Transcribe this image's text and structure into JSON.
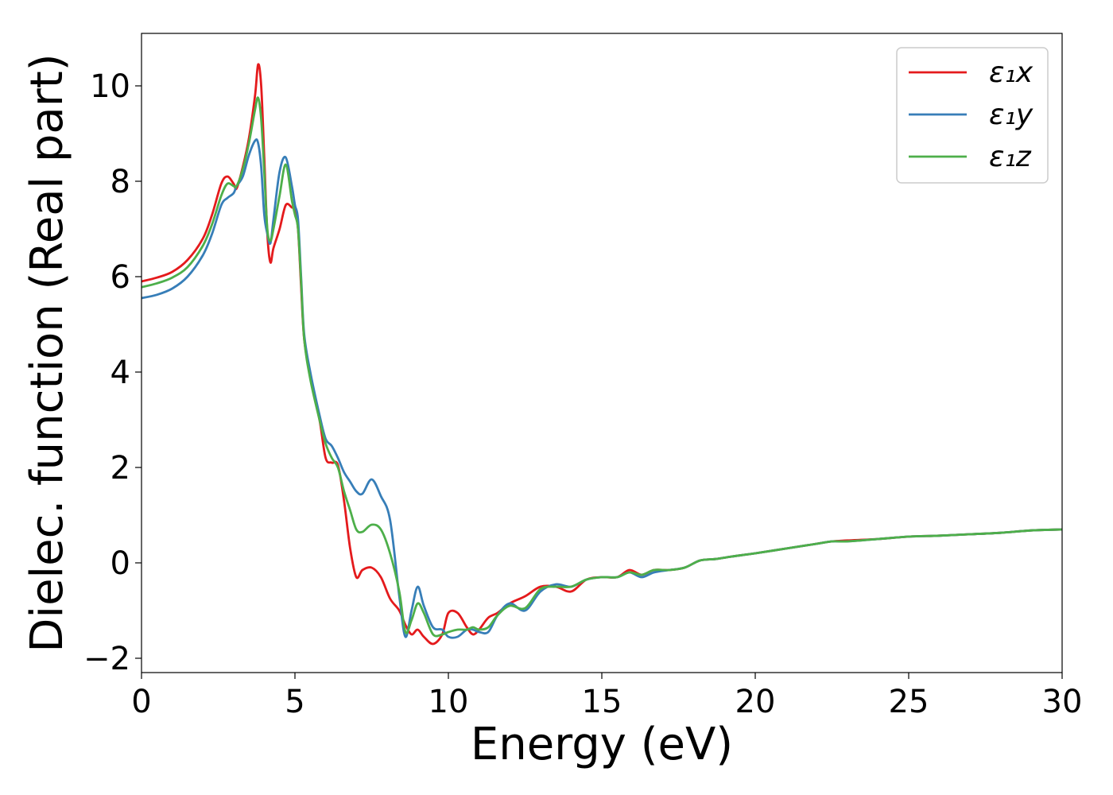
{
  "chart_data": {
    "type": "line",
    "title": "",
    "xlabel": "Energy (eV)",
    "ylabel": "Dielec. function (Real part)",
    "xlim": [
      0,
      30
    ],
    "ylim": [
      -2.3,
      11.1
    ],
    "xticks": [
      0,
      5,
      10,
      15,
      20,
      25,
      30
    ],
    "yticks": [
      -2,
      0,
      2,
      4,
      6,
      8,
      10
    ],
    "ytick_labels": [
      "−2",
      "0",
      "2",
      "4",
      "6",
      "8",
      "10"
    ],
    "grid": false,
    "legend_position": "top-right",
    "series": [
      {
        "name": "ε₁x",
        "color": "#e41a1c",
        "x": [
          0,
          0.5,
          1.0,
          1.5,
          2.0,
          2.3,
          2.6,
          2.8,
          3.0,
          3.1,
          3.3,
          3.5,
          3.7,
          3.8,
          3.9,
          4.0,
          4.1,
          4.2,
          4.3,
          4.5,
          4.7,
          4.9,
          5.0,
          5.1,
          5.2,
          5.3,
          5.5,
          5.8,
          6.0,
          6.2,
          6.4,
          6.6,
          6.8,
          7.0,
          7.2,
          7.5,
          7.8,
          8.1,
          8.4,
          8.6,
          8.8,
          9.0,
          9.2,
          9.5,
          9.8,
          10.0,
          10.3,
          10.6,
          10.8,
          11.0,
          11.3,
          11.6,
          12.0,
          12.5,
          13.0,
          13.5,
          14.0,
          14.5,
          15.0,
          15.5,
          15.9,
          16.3,
          16.7,
          17.2,
          17.7,
          18.2,
          18.7,
          19.2,
          20.0,
          21.0,
          22.0,
          22.5,
          23.0,
          24.0,
          25.0,
          26.0,
          27.0,
          28.0,
          29.0,
          30.0
        ],
        "y": [
          5.9,
          5.98,
          6.1,
          6.35,
          6.8,
          7.3,
          7.95,
          8.1,
          7.95,
          7.85,
          8.3,
          8.9,
          9.8,
          10.45,
          10.0,
          8.5,
          6.9,
          6.3,
          6.6,
          7.0,
          7.5,
          7.45,
          7.4,
          7.0,
          5.8,
          4.7,
          3.9,
          3.0,
          2.2,
          2.1,
          2.05,
          1.3,
          0.3,
          -0.3,
          -0.15,
          -0.1,
          -0.3,
          -0.75,
          -1.0,
          -1.3,
          -1.5,
          -1.4,
          -1.55,
          -1.7,
          -1.5,
          -1.05,
          -1.05,
          -1.35,
          -1.5,
          -1.4,
          -1.15,
          -1.05,
          -0.85,
          -0.7,
          -0.5,
          -0.5,
          -0.6,
          -0.35,
          -0.3,
          -0.3,
          -0.15,
          -0.25,
          -0.15,
          -0.15,
          -0.1,
          0.05,
          0.08,
          0.13,
          0.2,
          0.3,
          0.4,
          0.45,
          0.47,
          0.5,
          0.55,
          0.57,
          0.6,
          0.63,
          0.68,
          0.7
        ]
      },
      {
        "name": "ε₁y",
        "color": "#377eb8",
        "x": [
          0,
          0.5,
          1.0,
          1.5,
          2.0,
          2.3,
          2.6,
          2.8,
          3.0,
          3.1,
          3.3,
          3.5,
          3.7,
          3.8,
          3.9,
          4.0,
          4.1,
          4.2,
          4.3,
          4.5,
          4.7,
          4.9,
          5.0,
          5.1,
          5.2,
          5.3,
          5.5,
          5.8,
          6.0,
          6.2,
          6.4,
          6.6,
          6.8,
          7.0,
          7.2,
          7.5,
          7.8,
          8.1,
          8.4,
          8.6,
          8.8,
          9.0,
          9.2,
          9.5,
          9.8,
          10.0,
          10.3,
          10.6,
          10.8,
          11.0,
          11.3,
          11.6,
          12.0,
          12.5,
          13.0,
          13.5,
          14.0,
          14.5,
          15.0,
          15.5,
          15.9,
          16.3,
          16.7,
          17.2,
          17.7,
          18.2,
          18.7,
          19.2,
          20.0,
          21.0,
          22.0,
          22.5,
          23.0,
          24.0,
          25.0,
          26.0,
          27.0,
          28.0,
          29.0,
          30.0
        ],
        "y": [
          5.55,
          5.62,
          5.75,
          6.0,
          6.45,
          6.9,
          7.5,
          7.65,
          7.75,
          7.9,
          8.1,
          8.55,
          8.85,
          8.8,
          8.3,
          7.3,
          6.9,
          6.7,
          7.2,
          8.2,
          8.5,
          7.9,
          7.5,
          7.2,
          6.0,
          4.8,
          4.0,
          3.1,
          2.6,
          2.45,
          2.2,
          1.9,
          1.7,
          1.5,
          1.45,
          1.75,
          1.4,
          0.9,
          -0.7,
          -1.55,
          -1.0,
          -0.5,
          -0.9,
          -1.35,
          -1.4,
          -1.55,
          -1.55,
          -1.4,
          -1.4,
          -1.45,
          -1.45,
          -1.1,
          -0.85,
          -1.0,
          -0.6,
          -0.45,
          -0.5,
          -0.35,
          -0.3,
          -0.3,
          -0.2,
          -0.3,
          -0.2,
          -0.15,
          -0.1,
          0.05,
          0.08,
          0.13,
          0.2,
          0.3,
          0.4,
          0.45,
          0.45,
          0.5,
          0.55,
          0.57,
          0.6,
          0.63,
          0.68,
          0.7
        ]
      },
      {
        "name": "ε₁z",
        "color": "#4daf4a",
        "x": [
          0,
          0.5,
          1.0,
          1.5,
          2.0,
          2.3,
          2.6,
          2.8,
          3.0,
          3.1,
          3.3,
          3.5,
          3.7,
          3.8,
          3.9,
          4.0,
          4.1,
          4.2,
          4.3,
          4.5,
          4.7,
          4.9,
          5.0,
          5.1,
          5.2,
          5.3,
          5.5,
          5.8,
          6.0,
          6.2,
          6.4,
          6.6,
          6.8,
          7.0,
          7.2,
          7.5,
          7.8,
          8.1,
          8.4,
          8.6,
          8.8,
          9.0,
          9.2,
          9.5,
          9.8,
          10.0,
          10.3,
          10.6,
          10.8,
          11.0,
          11.3,
          11.6,
          12.0,
          12.5,
          13.0,
          13.5,
          14.0,
          14.5,
          15.0,
          15.5,
          15.9,
          16.3,
          16.7,
          17.2,
          17.7,
          18.2,
          18.7,
          19.2,
          20.0,
          21.0,
          22.0,
          22.5,
          23.0,
          24.0,
          25.0,
          26.0,
          27.0,
          28.0,
          29.0,
          30.0
        ],
        "y": [
          5.78,
          5.86,
          5.98,
          6.2,
          6.65,
          7.1,
          7.7,
          7.95,
          7.9,
          7.9,
          8.25,
          8.8,
          9.5,
          9.75,
          9.3,
          8.2,
          7.0,
          6.75,
          7.0,
          7.7,
          8.35,
          7.6,
          7.3,
          7.0,
          5.9,
          4.7,
          3.85,
          3.0,
          2.5,
          2.2,
          2.0,
          1.5,
          1.1,
          0.7,
          0.65,
          0.8,
          0.7,
          0.2,
          -0.6,
          -1.45,
          -1.2,
          -0.85,
          -1.05,
          -1.5,
          -1.5,
          -1.45,
          -1.4,
          -1.4,
          -1.35,
          -1.4,
          -1.35,
          -1.1,
          -0.9,
          -0.95,
          -0.55,
          -0.5,
          -0.5,
          -0.35,
          -0.3,
          -0.3,
          -0.2,
          -0.25,
          -0.15,
          -0.15,
          -0.1,
          0.05,
          0.08,
          0.13,
          0.2,
          0.3,
          0.4,
          0.45,
          0.45,
          0.5,
          0.55,
          0.57,
          0.6,
          0.63,
          0.68,
          0.7
        ]
      }
    ]
  }
}
